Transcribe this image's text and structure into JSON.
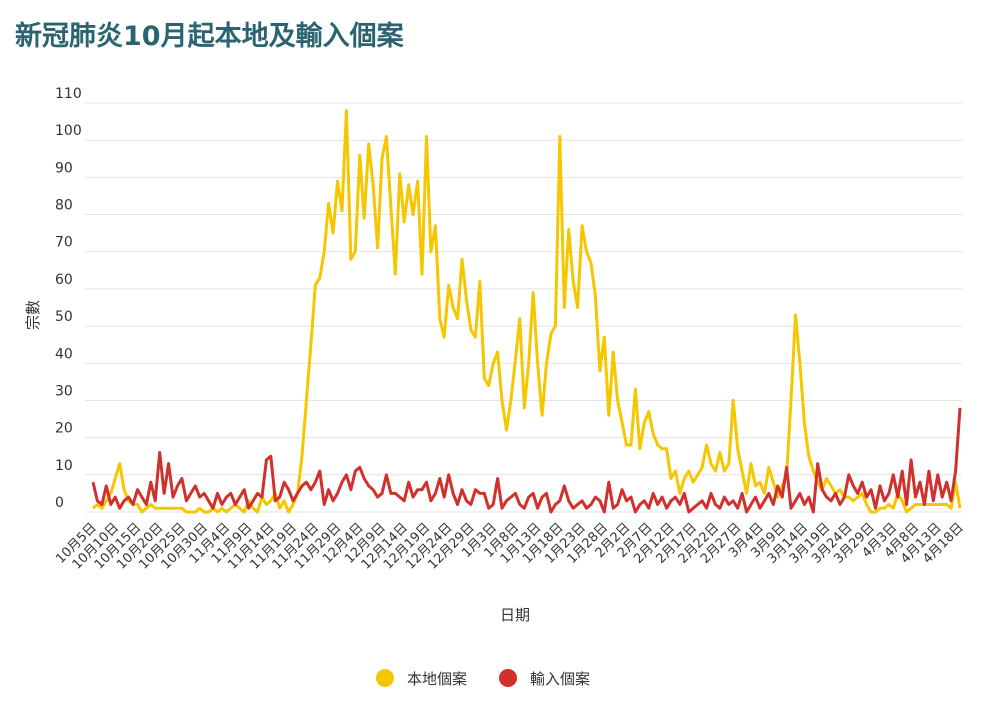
{
  "chart_data": {
    "type": "line",
    "title": "新冠肺炎10月起本地及輸入個案",
    "x_label": "日期",
    "y_label": "宗數",
    "categories": [
      "10月5日",
      null,
      null,
      null,
      null,
      "10月10日",
      null,
      null,
      null,
      null,
      "10月15日",
      null,
      null,
      null,
      null,
      "10月20日",
      null,
      null,
      null,
      null,
      "10月25日",
      null,
      null,
      null,
      null,
      "10月30日",
      null,
      null,
      null,
      null,
      "11月4日",
      null,
      null,
      null,
      null,
      "11月9日",
      null,
      null,
      null,
      null,
      "11月14日",
      null,
      null,
      null,
      null,
      "11月19日",
      null,
      null,
      null,
      null,
      "11月24日",
      null,
      null,
      null,
      null,
      "11月29日",
      null,
      null,
      null,
      null,
      "12月4日",
      null,
      null,
      null,
      null,
      "12月9日",
      null,
      null,
      null,
      null,
      "12月14日",
      null,
      null,
      null,
      null,
      "12月19日",
      null,
      null,
      null,
      null,
      "12月24日",
      null,
      null,
      null,
      null,
      "12月29日",
      null,
      null,
      null,
      null,
      "1月3日",
      null,
      null,
      null,
      null,
      "1月8日",
      null,
      null,
      null,
      null,
      "1月13日",
      null,
      null,
      null,
      null,
      "1月18日",
      null,
      null,
      null,
      null,
      "1月23日",
      null,
      null,
      null,
      null,
      "1月28日",
      null,
      null,
      null,
      null,
      "2月2日",
      null,
      null,
      null,
      null,
      "2月7日",
      null,
      null,
      null,
      null,
      "2月12日",
      null,
      null,
      null,
      null,
      "2月17日",
      null,
      null,
      null,
      null,
      "2月22日",
      null,
      null,
      null,
      null,
      "2月27日",
      null,
      null,
      null,
      null,
      "3月4日",
      null,
      null,
      null,
      null,
      "3月9日",
      null,
      null,
      null,
      null,
      "3月14日",
      null,
      null,
      null,
      null,
      "3月19日",
      null,
      null,
      null,
      null,
      "3月24日",
      null,
      null,
      null,
      null,
      "3月29日",
      null,
      null,
      null,
      null,
      "4月3日",
      null,
      null,
      null,
      null,
      "4月8日",
      null,
      null,
      null,
      null,
      "4月13日",
      null,
      null,
      null,
      null,
      "4月18日"
    ],
    "series": [
      {
        "name": "本地個案",
        "color": "#f6c700",
        "values": [
          1,
          2,
          1,
          3,
          5,
          9,
          13,
          6,
          3,
          2,
          2,
          0,
          1,
          2,
          1,
          1,
          1,
          1,
          1,
          1,
          1,
          0,
          0,
          0,
          1,
          0,
          0,
          1,
          0,
          1,
          0,
          1,
          2,
          1,
          0,
          3,
          1,
          0,
          4,
          2,
          3,
          5,
          1,
          3,
          0,
          2,
          5,
          15,
          30,
          45,
          61,
          63,
          70,
          83,
          75,
          89,
          81,
          108,
          68,
          70,
          96,
          79,
          99,
          88,
          71,
          95,
          101,
          82,
          64,
          91,
          78,
          88,
          80,
          89,
          64,
          101,
          70,
          77,
          52,
          47,
          61,
          55,
          52,
          68,
          57,
          49,
          47,
          62,
          36,
          34,
          40,
          43,
          30,
          22,
          30,
          41,
          52,
          28,
          40,
          59,
          40,
          26,
          40,
          48,
          50,
          101,
          55,
          76,
          62,
          55,
          77,
          70,
          67,
          58,
          38,
          47,
          26,
          43,
          30,
          24,
          18,
          18,
          33,
          17,
          24,
          27,
          21,
          18,
          17,
          17,
          9,
          11,
          5,
          9,
          11,
          8,
          10,
          12,
          18,
          13,
          11,
          16,
          11,
          13,
          30,
          17,
          11,
          5,
          13,
          7,
          8,
          5,
          12,
          8,
          4,
          7,
          10,
          30,
          53,
          40,
          24,
          15,
          11,
          8,
          6,
          9,
          7,
          5,
          6,
          4,
          4,
          3,
          4,
          5,
          2,
          0,
          0,
          1,
          1,
          2,
          1,
          5,
          3,
          0,
          1,
          2,
          2,
          2,
          2,
          2,
          2,
          2,
          2,
          1,
          8,
          1
        ]
      },
      {
        "name": "輸入個案",
        "color": "#d0312d",
        "values": [
          8,
          3,
          2,
          7,
          2,
          4,
          1,
          3,
          4,
          2,
          6,
          4,
          2,
          8,
          3,
          16,
          5,
          13,
          4,
          7,
          9,
          3,
          5,
          7,
          4,
          5,
          3,
          1,
          5,
          2,
          4,
          5,
          2,
          4,
          6,
          1,
          3,
          5,
          4,
          14,
          15,
          3,
          4,
          8,
          6,
          3,
          5,
          7,
          8,
          6,
          8,
          11,
          2,
          6,
          3,
          5,
          8,
          10,
          6,
          11,
          12,
          9,
          7,
          6,
          4,
          5,
          10,
          5,
          5,
          4,
          3,
          8,
          4,
          6,
          6,
          8,
          3,
          5,
          9,
          4,
          10,
          5,
          2,
          6,
          3,
          2,
          6,
          5,
          5,
          1,
          2,
          9,
          1,
          3,
          4,
          5,
          2,
          1,
          4,
          5,
          1,
          4,
          5,
          0,
          2,
          3,
          7,
          3,
          1,
          2,
          3,
          1,
          2,
          4,
          3,
          0,
          8,
          1,
          2,
          6,
          3,
          4,
          0,
          2,
          3,
          1,
          5,
          2,
          4,
          1,
          3,
          4,
          2,
          5,
          0,
          1,
          2,
          3,
          1,
          5,
          2,
          1,
          4,
          2,
          3,
          1,
          5,
          0,
          2,
          4,
          1,
          3,
          5,
          2,
          7,
          4,
          12,
          1,
          3,
          5,
          2,
          4,
          0,
          13,
          6,
          4,
          3,
          5,
          2,
          4,
          10,
          7,
          5,
          8,
          4,
          6,
          1,
          7,
          3,
          5,
          10,
          4,
          11,
          2,
          14,
          4,
          8,
          2,
          11,
          3,
          10,
          4,
          8,
          3,
          11,
          28
        ]
      }
    ],
    "ylim": [
      -2,
      112
    ],
    "yticks": [
      0,
      10,
      20,
      30,
      40,
      50,
      60,
      70,
      80,
      90,
      100,
      110
    ],
    "grid": true,
    "legend": "bottom"
  }
}
